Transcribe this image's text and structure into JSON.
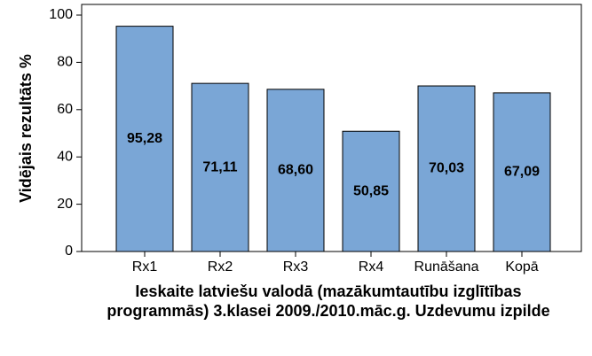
{
  "chart_data": {
    "type": "bar",
    "x_label": "Ieskaite latviešu valodā (mazākumtautību izglītības programmās) 3.klasei 2009./2010.māc.g. Uzdevumu izpilde",
    "y_label": "Vidējais rezultāts %",
    "categories": [
      "Rx1",
      "Rx2",
      "Rx3",
      "Rx4",
      "Runāšana",
      "Kopā"
    ],
    "values": [
      95.28,
      71.11,
      68.6,
      50.85,
      70.03,
      67.09
    ],
    "value_labels": [
      "95,28",
      "71,11",
      "68,60",
      "50,85",
      "70,03",
      "67,09"
    ],
    "color": "#7aa6d6",
    "ylim": [
      0,
      104.5
    ],
    "yticks": [
      0,
      20,
      40,
      60,
      80,
      100
    ],
    "grid": false
  }
}
